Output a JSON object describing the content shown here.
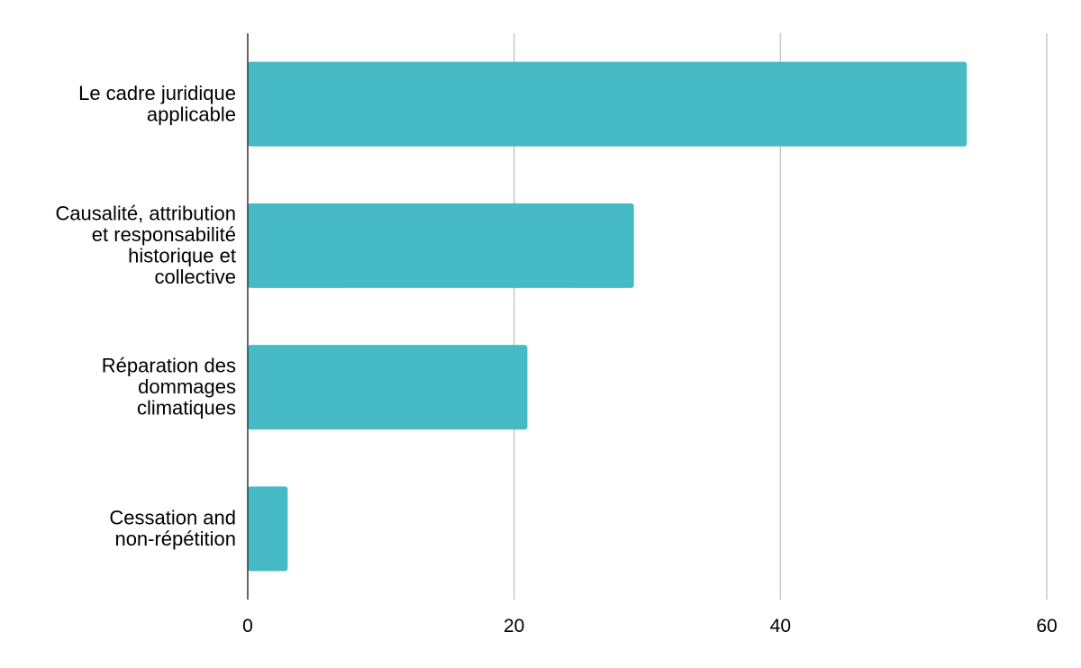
{
  "chart_data": {
    "type": "bar",
    "orientation": "horizontal",
    "title": "",
    "xlabel": "",
    "ylabel": "",
    "categories": [
      [
        "Le cadre juridique",
        "applicable"
      ],
      [
        "Causalité, attribution",
        "et responsabilité",
        "historique et",
        "collective"
      ],
      [
        "Réparation des",
        "dommages",
        "climatiques"
      ],
      [
        "Cessation and",
        "non-répétition"
      ]
    ],
    "values": [
      54,
      29,
      21,
      3
    ],
    "xlim": [
      0,
      60
    ],
    "xticks": [
      0,
      20,
      40,
      60
    ],
    "grid": "vertical",
    "legend": "none",
    "colors": {
      "bar": "#47bbc5",
      "grid": "#c8c8c8",
      "axis": "#333333"
    }
  }
}
